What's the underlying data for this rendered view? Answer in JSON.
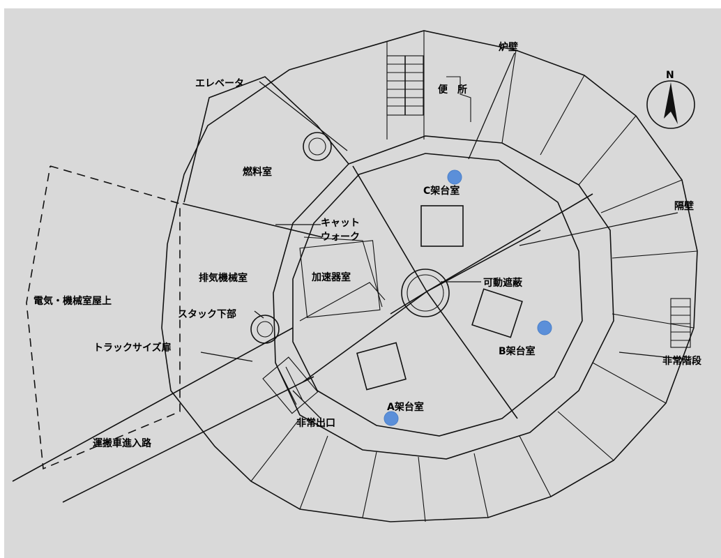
{
  "colors": {
    "background": "#d9d9d9",
    "line": "#111111",
    "marker": "#5b8fd9"
  },
  "compass": {
    "letter": "N"
  },
  "labels": {
    "elevator": "エレベータ",
    "furnace_wall": "炉壁",
    "toilet": "便　所",
    "fuel_room": "燃料室",
    "c_room": "C架台室",
    "partition": "隔壁",
    "catwalk_1": "キャット",
    "catwalk_2": "ウォーク",
    "exhaust_room": "排気機械室",
    "accelerator_room": "加速器室",
    "movable_shield": "可動遮蔽",
    "electric_roof": "電気・機械室屋上",
    "stack_bottom": "スタック下部",
    "b_room": "B架台室",
    "truck_door": "トラックサイズ扉",
    "emergency_stairs": "非常階段",
    "a_room": "A架台室",
    "emergency_exit": "非常出口",
    "vehicle_road": "運搬車進入路"
  },
  "markers": [
    {
      "name": "c-room-marker",
      "room": "C架台室"
    },
    {
      "name": "b-room-marker",
      "room": "B架台室"
    },
    {
      "name": "a-room-marker",
      "room": "A架台室"
    }
  ]
}
